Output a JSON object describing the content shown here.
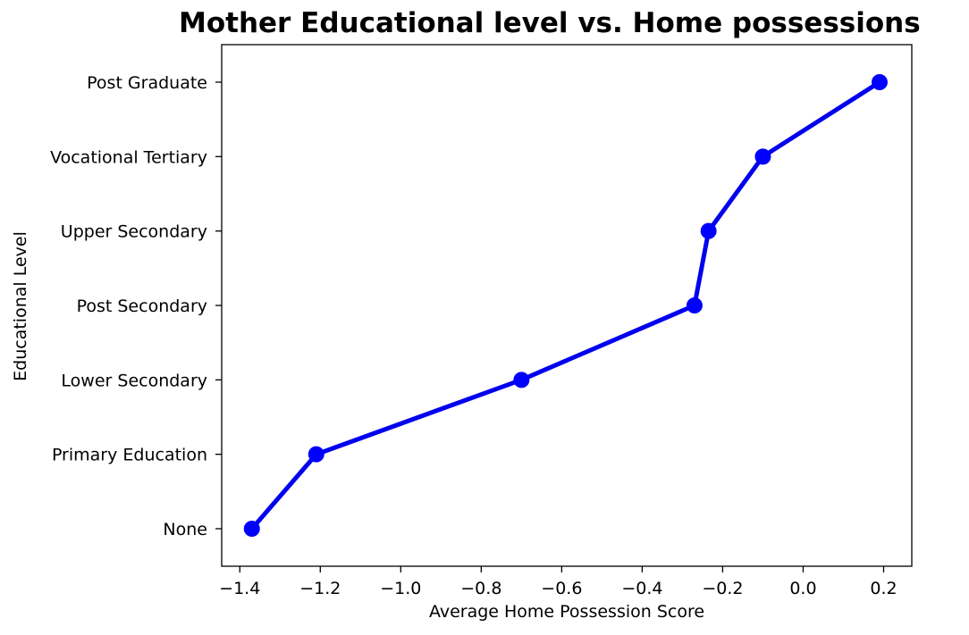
{
  "chart_data": {
    "type": "line",
    "title": "Mother Educational level vs. Home possessions",
    "xlabel": "Average Home Possession Score",
    "ylabel": "Educational Level",
    "categories": [
      "None",
      "Primary Education",
      "Lower Secondary",
      "Post Secondary",
      "Upper Secondary",
      "Vocational Tertiary",
      "Post Graduate"
    ],
    "x": [
      -1.37,
      -1.21,
      -0.7,
      -0.27,
      -0.235,
      -0.1,
      0.19
    ],
    "xlim": [
      -1.445,
      0.27
    ],
    "xticks": [
      -1.4,
      -1.2,
      -1.0,
      -0.8,
      -0.6,
      -0.4,
      -0.2,
      0.0,
      0.2
    ],
    "xtick_labels": [
      "−1.4",
      "−1.2",
      "−1.0",
      "−0.8",
      "−0.6",
      "−0.4",
      "−0.2",
      "0.0",
      "0.2"
    ],
    "grid": false,
    "line_color": "#0000ee",
    "marker_color": "#0000ff"
  }
}
